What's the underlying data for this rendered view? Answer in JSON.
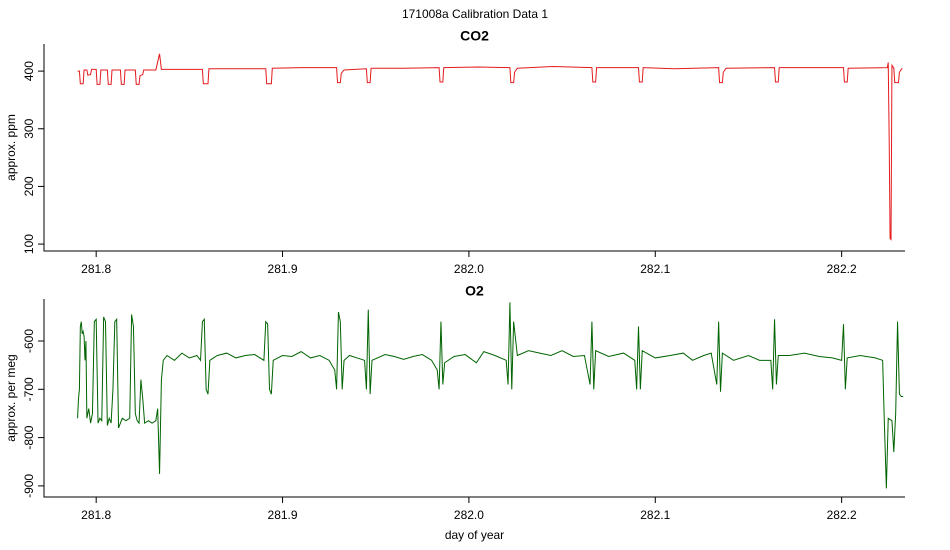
{
  "title": "171008a   Calibration Data 1",
  "chart_data": [
    {
      "type": "line",
      "title": "CO2",
      "ylabel": "approx. ppm",
      "color": "#e41a1c",
      "xlim": [
        281.772,
        282.234
      ],
      "ylim": [
        88,
        447
      ],
      "xticks": [
        281.8,
        281.9,
        {
          "value": 282,
          "label": "282.0"
        },
        282.1,
        282.2
      ],
      "yticks": [
        100,
        200,
        300,
        400
      ],
      "x": [
        281.79,
        281.791,
        281.7915,
        281.793,
        281.7935,
        281.795,
        281.7955,
        281.797,
        281.7975,
        281.8,
        281.8005,
        281.802,
        281.8025,
        281.806,
        281.8065,
        281.808,
        281.8085,
        281.813,
        281.8135,
        281.815,
        281.8155,
        281.821,
        281.8215,
        281.823,
        281.8235,
        281.825,
        281.8255,
        281.832,
        281.834,
        281.835,
        281.857,
        281.8575,
        281.86,
        281.8605,
        281.891,
        281.8915,
        281.894,
        281.8945,
        281.91,
        281.929,
        281.9295,
        281.931,
        281.9315,
        281.933,
        281.945,
        281.9455,
        281.947,
        281.9475,
        281.965,
        281.984,
        281.9845,
        281.986,
        281.9865,
        282.005,
        282.022,
        282.0225,
        282.024,
        282.0245,
        282.026,
        282.045,
        282.066,
        282.0665,
        282.068,
        282.0685,
        282.091,
        282.0915,
        282.093,
        282.0935,
        282.11,
        282.134,
        282.1345,
        282.136,
        282.1365,
        282.138,
        282.164,
        282.1645,
        282.166,
        282.1665,
        282.185,
        282.201,
        282.2015,
        282.203,
        282.2035,
        282.2245,
        282.225,
        282.2255,
        282.226,
        282.2265,
        282.227,
        282.228,
        282.2285,
        282.2305,
        282.231,
        282.2325
      ],
      "values": [
        400,
        400,
        378,
        378,
        402,
        402,
        393,
        394,
        403,
        403,
        377,
        377,
        402,
        402,
        377,
        377,
        402,
        402,
        377,
        377,
        402,
        402,
        377,
        377,
        392,
        394,
        402,
        402,
        430,
        403,
        403,
        378,
        378,
        404,
        404,
        378,
        378,
        405,
        406,
        406,
        380,
        380,
        396,
        402,
        404,
        380,
        380,
        405,
        405,
        406,
        381,
        381,
        406,
        407,
        406,
        380,
        380,
        398,
        405,
        408,
        406,
        381,
        381,
        406,
        406,
        381,
        381,
        406,
        404,
        406,
        380,
        380,
        398,
        405,
        406,
        381,
        381,
        406,
        406,
        406,
        381,
        381,
        405,
        406,
        415,
        285,
        110,
        108,
        410,
        405,
        380,
        380,
        398,
        405
      ]
    },
    {
      "type": "line",
      "title": "O2",
      "ylabel": "approx. per meg",
      "xlabel": "day of year",
      "color": "#006400",
      "xlim": [
        281.772,
        282.234
      ],
      "ylim": [
        -923,
        -513
      ],
      "xticks": [
        281.8,
        281.9,
        {
          "value": 282,
          "label": "282.0"
        },
        282.1,
        282.2
      ],
      "yticks": [
        -900,
        -800,
        -700,
        -600
      ],
      "x": [
        281.79,
        281.7905,
        281.791,
        281.7915,
        281.792,
        281.7925,
        281.793,
        281.7935,
        281.794,
        281.7945,
        281.795,
        281.796,
        281.797,
        281.798,
        281.799,
        281.8,
        281.801,
        281.802,
        281.803,
        281.804,
        281.805,
        281.806,
        281.807,
        281.808,
        281.809,
        281.81,
        281.811,
        281.812,
        281.814,
        281.816,
        281.818,
        281.819,
        281.82,
        281.821,
        281.822,
        281.823,
        281.824,
        281.825,
        281.826,
        281.828,
        281.83,
        281.832,
        281.833,
        281.834,
        281.835,
        281.836,
        281.838,
        281.842,
        281.846,
        281.85,
        281.854,
        281.856,
        281.857,
        281.858,
        281.859,
        281.86,
        281.861,
        281.865,
        281.87,
        281.875,
        281.88,
        281.885,
        281.89,
        281.891,
        281.892,
        281.893,
        281.894,
        281.895,
        281.9,
        281.905,
        281.91,
        281.915,
        281.92,
        281.925,
        281.928,
        281.929,
        281.93,
        281.931,
        281.932,
        281.933,
        281.936,
        281.94,
        281.944,
        281.945,
        281.946,
        281.947,
        281.948,
        281.955,
        281.96,
        281.965,
        281.97,
        281.975,
        281.98,
        281.983,
        281.984,
        281.985,
        281.986,
        281.987,
        281.992,
        281.998,
        282.004,
        282.008,
        282.014,
        282.02,
        282.021,
        282.022,
        282.023,
        282.024,
        282.026,
        282.032,
        282.038,
        282.044,
        282.05,
        282.056,
        282.062,
        282.065,
        282.066,
        282.067,
        282.068,
        282.075,
        282.083,
        282.089,
        282.09,
        282.091,
        282.092,
        282.093,
        282.1,
        282.108,
        282.115,
        282.12,
        282.126,
        282.13,
        282.133,
        282.134,
        282.135,
        282.136,
        282.142,
        282.15,
        282.156,
        282.162,
        282.163,
        282.164,
        282.165,
        282.166,
        282.172,
        282.18,
        282.188,
        282.195,
        282.2,
        282.201,
        282.202,
        282.203,
        282.21,
        282.218,
        282.222,
        282.223,
        282.224,
        282.225,
        282.227,
        282.228,
        282.229,
        282.23,
        282.231,
        282.232,
        282.233
      ],
      "values": [
        -760,
        -720,
        -700,
        -570,
        -560,
        -585,
        -580,
        -590,
        -640,
        -600,
        -760,
        -740,
        -770,
        -750,
        -560,
        -555,
        -770,
        -760,
        -765,
        -550,
        -560,
        -775,
        -760,
        -770,
        -700,
        -560,
        -555,
        -780,
        -760,
        -765,
        -760,
        -545,
        -570,
        -750,
        -765,
        -770,
        -680,
        -720,
        -770,
        -765,
        -770,
        -765,
        -740,
        -875,
        -680,
        -640,
        -630,
        -640,
        -625,
        -635,
        -630,
        -640,
        -560,
        -555,
        -700,
        -710,
        -640,
        -630,
        -625,
        -635,
        -630,
        -628,
        -640,
        -560,
        -565,
        -700,
        -710,
        -640,
        -630,
        -632,
        -622,
        -635,
        -630,
        -640,
        -660,
        -700,
        -540,
        -560,
        -700,
        -640,
        -630,
        -635,
        -640,
        -700,
        -535,
        -710,
        -640,
        -628,
        -632,
        -638,
        -632,
        -628,
        -640,
        -660,
        -700,
        -560,
        -690,
        -645,
        -632,
        -628,
        -645,
        -622,
        -630,
        -640,
        -690,
        -520,
        -700,
        -560,
        -630,
        -620,
        -625,
        -630,
        -620,
        -632,
        -630,
        -690,
        -560,
        -700,
        -620,
        -632,
        -625,
        -640,
        -700,
        -570,
        -700,
        -620,
        -635,
        -630,
        -625,
        -640,
        -630,
        -625,
        -690,
        -560,
        -705,
        -625,
        -640,
        -630,
        -640,
        -640,
        -700,
        -555,
        -690,
        -630,
        -630,
        -625,
        -632,
        -635,
        -640,
        -565,
        -700,
        -635,
        -630,
        -635,
        -640,
        -780,
        -905,
        -760,
        -765,
        -830,
        -750,
        -560,
        -710,
        -715,
        -715
      ]
    }
  ]
}
